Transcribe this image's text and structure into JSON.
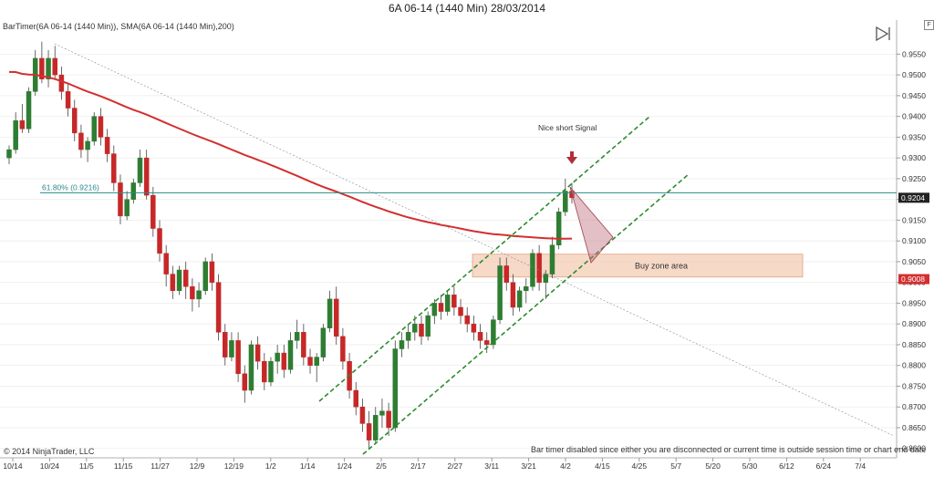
{
  "title": "6A 06-14 (1440 Min)  28/03/2014",
  "indicator_label": "BarTimer(6A 06-14 (1440 Min)), SMA(6A 06-14 (1440 Min),200)",
  "copyright": "© 2014 NinjaTrader, LLC",
  "status_message": "Bar timer disabled since either you are disconnected or current time is outside session time or chart end date",
  "f_button": "F",
  "colors": {
    "up": "#2e7d32",
    "down": "#c62828",
    "sma": "#d32f2f",
    "channel": "#2e8b2e",
    "fib": "#2a8a8a",
    "zone": "#f4c9b0",
    "signal": "#b0303a"
  },
  "chart_data": {
    "type": "candlestick",
    "y_ticks": [
      "0.9550",
      "0.9500",
      "0.9450",
      "0.9400",
      "0.9350",
      "0.9300",
      "0.9250",
      "0.9200",
      "0.9150",
      "0.9100",
      "0.9050",
      "0.9000",
      "0.8950",
      "0.8900",
      "0.8850",
      "0.8800",
      "0.8750",
      "0.8700",
      "0.8650",
      "0.8600"
    ],
    "x_ticks": [
      "10/14",
      "10/24",
      "11/5",
      "11/15",
      "11/27",
      "12/9",
      "12/19",
      "1/2",
      "1/14",
      "1/24",
      "2/5",
      "2/17",
      "2/27",
      "3/11",
      "3/21",
      "4/2",
      "4/15",
      "4/25",
      "5/7",
      "5/20",
      "5/30",
      "6/12",
      "6/24",
      "7/4"
    ],
    "ylim": [
      0.8595,
      0.9575
    ],
    "last_price_label": "0.9204",
    "last_price": 0.9204,
    "sma_price_label": "0.9008",
    "sma_price": 0.9008,
    "fib_label": "61.80% (0.9216)",
    "fib_value": 0.9216,
    "annotations": {
      "signal": "Nice short Signal",
      "zone": "Buy zone area"
    },
    "zone_range": [
      0.9013,
      0.9068
    ],
    "ohlc": [
      [
        0.93,
        0.933,
        0.9285,
        0.932
      ],
      [
        0.932,
        0.941,
        0.931,
        0.939
      ],
      [
        0.939,
        0.943,
        0.936,
        0.937
      ],
      [
        0.937,
        0.947,
        0.936,
        0.946
      ],
      [
        0.946,
        0.956,
        0.945,
        0.954
      ],
      [
        0.954,
        0.958,
        0.948,
        0.949
      ],
      [
        0.949,
        0.956,
        0.947,
        0.954
      ],
      [
        0.954,
        0.957,
        0.949,
        0.95
      ],
      [
        0.95,
        0.952,
        0.944,
        0.946
      ],
      [
        0.946,
        0.948,
        0.94,
        0.942
      ],
      [
        0.942,
        0.944,
        0.934,
        0.936
      ],
      [
        0.936,
        0.938,
        0.93,
        0.932
      ],
      [
        0.932,
        0.935,
        0.929,
        0.934
      ],
      [
        0.934,
        0.941,
        0.933,
        0.94
      ],
      [
        0.94,
        0.942,
        0.933,
        0.935
      ],
      [
        0.935,
        0.937,
        0.929,
        0.931
      ],
      [
        0.931,
        0.933,
        0.922,
        0.924
      ],
      [
        0.924,
        0.926,
        0.914,
        0.916
      ],
      [
        0.916,
        0.922,
        0.915,
        0.92
      ],
      [
        0.92,
        0.925,
        0.919,
        0.924
      ],
      [
        0.924,
        0.932,
        0.923,
        0.93
      ],
      [
        0.93,
        0.932,
        0.92,
        0.921
      ],
      [
        0.921,
        0.923,
        0.911,
        0.913
      ],
      [
        0.913,
        0.915,
        0.905,
        0.907
      ],
      [
        0.907,
        0.909,
        0.899,
        0.902
      ],
      [
        0.902,
        0.904,
        0.896,
        0.898
      ],
      [
        0.898,
        0.904,
        0.897,
        0.903
      ],
      [
        0.903,
        0.905,
        0.896,
        0.899
      ],
      [
        0.899,
        0.901,
        0.893,
        0.896
      ],
      [
        0.896,
        0.9,
        0.894,
        0.898
      ],
      [
        0.898,
        0.906,
        0.897,
        0.905
      ],
      [
        0.905,
        0.907,
        0.898,
        0.9
      ],
      [
        0.9,
        0.902,
        0.886,
        0.888
      ],
      [
        0.888,
        0.89,
        0.88,
        0.882
      ],
      [
        0.882,
        0.888,
        0.881,
        0.886
      ],
      [
        0.886,
        0.888,
        0.876,
        0.878
      ],
      [
        0.878,
        0.88,
        0.871,
        0.874
      ],
      [
        0.874,
        0.886,
        0.873,
        0.885
      ],
      [
        0.885,
        0.887,
        0.879,
        0.881
      ],
      [
        0.881,
        0.883,
        0.874,
        0.876
      ],
      [
        0.876,
        0.882,
        0.875,
        0.881
      ],
      [
        0.881,
        0.885,
        0.878,
        0.883
      ],
      [
        0.883,
        0.885,
        0.877,
        0.879
      ],
      [
        0.879,
        0.888,
        0.878,
        0.886
      ],
      [
        0.886,
        0.891,
        0.884,
        0.888
      ],
      [
        0.888,
        0.89,
        0.88,
        0.882
      ],
      [
        0.882,
        0.884,
        0.878,
        0.88
      ],
      [
        0.88,
        0.883,
        0.876,
        0.882
      ],
      [
        0.882,
        0.89,
        0.881,
        0.889
      ],
      [
        0.889,
        0.898,
        0.888,
        0.896
      ],
      [
        0.896,
        0.899,
        0.885,
        0.887
      ],
      [
        0.887,
        0.889,
        0.879,
        0.881
      ],
      [
        0.881,
        0.883,
        0.872,
        0.874
      ],
      [
        0.874,
        0.876,
        0.868,
        0.87
      ],
      [
        0.87,
        0.872,
        0.864,
        0.866
      ],
      [
        0.866,
        0.869,
        0.86,
        0.862
      ],
      [
        0.862,
        0.87,
        0.861,
        0.868
      ],
      [
        0.868,
        0.872,
        0.865,
        0.869
      ],
      [
        0.869,
        0.871,
        0.863,
        0.865
      ],
      [
        0.865,
        0.886,
        0.864,
        0.884
      ],
      [
        0.884,
        0.888,
        0.882,
        0.886
      ],
      [
        0.886,
        0.89,
        0.884,
        0.888
      ],
      [
        0.888,
        0.892,
        0.886,
        0.89
      ],
      [
        0.89,
        0.892,
        0.885,
        0.887
      ],
      [
        0.887,
        0.893,
        0.886,
        0.892
      ],
      [
        0.892,
        0.896,
        0.89,
        0.895
      ],
      [
        0.895,
        0.897,
        0.891,
        0.893
      ],
      [
        0.893,
        0.898,
        0.892,
        0.897
      ],
      [
        0.897,
        0.899,
        0.892,
        0.894
      ],
      [
        0.894,
        0.896,
        0.89,
        0.892
      ],
      [
        0.892,
        0.894,
        0.888,
        0.89
      ],
      [
        0.89,
        0.892,
        0.886,
        0.888
      ],
      [
        0.888,
        0.89,
        0.884,
        0.886
      ],
      [
        0.886,
        0.888,
        0.883,
        0.885
      ],
      [
        0.885,
        0.892,
        0.884,
        0.891
      ],
      [
        0.891,
        0.906,
        0.89,
        0.904
      ],
      [
        0.904,
        0.906,
        0.898,
        0.9
      ],
      [
        0.9,
        0.902,
        0.892,
        0.894
      ],
      [
        0.894,
        0.899,
        0.893,
        0.898
      ],
      [
        0.898,
        0.901,
        0.895,
        0.899
      ],
      [
        0.899,
        0.908,
        0.898,
        0.907
      ],
      [
        0.907,
        0.909,
        0.898,
        0.9
      ],
      [
        0.9,
        0.903,
        0.896,
        0.902
      ],
      [
        0.902,
        0.911,
        0.901,
        0.909
      ],
      [
        0.909,
        0.918,
        0.908,
        0.917
      ],
      [
        0.917,
        0.925,
        0.916,
        0.922
      ],
      [
        0.922,
        0.924,
        0.919,
        0.9204
      ]
    ]
  }
}
